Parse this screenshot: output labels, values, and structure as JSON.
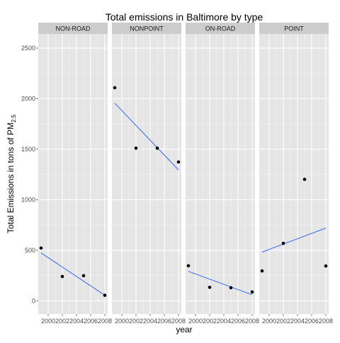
{
  "chart_data": {
    "type": "scatter",
    "title": "Total emissions in Baltimore by type",
    "xlabel": "year",
    "ylabel_main": "Total Emissions in tons of PM",
    "ylabel_sub": "2.5",
    "xlim": [
      1999,
      2008
    ],
    "ylim": [
      0,
      2500
    ],
    "x_ticks": [
      2000,
      2002,
      2004,
      2006,
      2008
    ],
    "y_ticks": [
      0,
      500,
      1000,
      1500,
      2000,
      2500
    ],
    "grid": true,
    "facets": [
      {
        "name": "NON-ROAD",
        "points": [
          {
            "x": 1999,
            "y": 522
          },
          {
            "x": 2002,
            "y": 241
          },
          {
            "x": 2005,
            "y": 249
          },
          {
            "x": 2008,
            "y": 55
          }
        ],
        "fit": {
          "x": [
            1999,
            2008
          ],
          "y": [
            474,
            55
          ]
        }
      },
      {
        "name": "NONPOINT",
        "points": [
          {
            "x": 1999,
            "y": 2108
          },
          {
            "x": 2002,
            "y": 1510
          },
          {
            "x": 2005,
            "y": 1510
          },
          {
            "x": 2008,
            "y": 1374
          }
        ],
        "fit": {
          "x": [
            1999,
            2008
          ],
          "y": [
            1955,
            1295
          ]
        }
      },
      {
        "name": "ON-ROAD",
        "points": [
          {
            "x": 1999,
            "y": 347
          },
          {
            "x": 2002,
            "y": 134
          },
          {
            "x": 2005,
            "y": 130
          },
          {
            "x": 2008,
            "y": 88
          }
        ],
        "fit": {
          "x": [
            1999,
            2008
          ],
          "y": [
            292,
            60
          ]
        }
      },
      {
        "name": "POINT",
        "points": [
          {
            "x": 1999,
            "y": 296
          },
          {
            "x": 2002,
            "y": 569
          },
          {
            "x": 2005,
            "y": 1202
          },
          {
            "x": 2008,
            "y": 345
          }
        ],
        "fit": {
          "x": [
            1999,
            2008
          ],
          "y": [
            483,
            720
          ]
        }
      }
    ]
  }
}
